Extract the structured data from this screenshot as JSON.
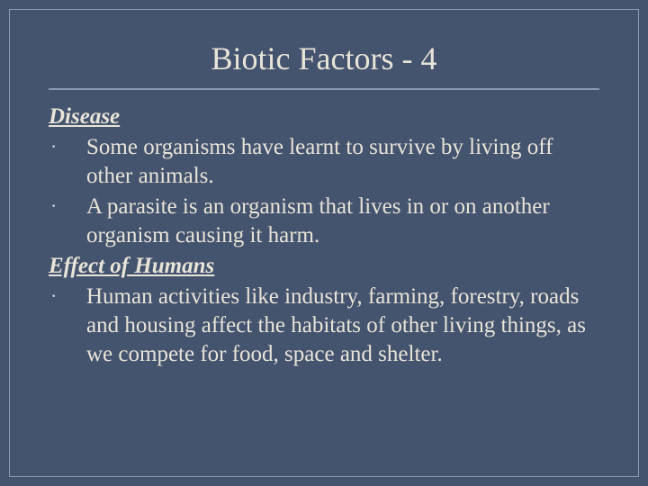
{
  "slide": {
    "background_color": "#44536e",
    "border_color": "#8a98b0",
    "text_color": "#e8e4d8",
    "title_fontsize": 36,
    "body_fontsize": 25,
    "font_family": "Georgia, 'Times New Roman', serif",
    "title": "Biotic Factors - 4",
    "sections": [
      {
        "heading": "Disease",
        "bullets": [
          "Some organisms have learnt to survive by living off other animals.",
          "A parasite is an organism that lives in or on another organism causing it harm."
        ]
      },
      {
        "heading": "Effect of Humans",
        "bullets": [
          "Human activities like industry, farming, forestry, roads and housing affect the habitats of other living things, as we compete for food, space and shelter."
        ]
      }
    ],
    "bullet_marker": "·"
  }
}
